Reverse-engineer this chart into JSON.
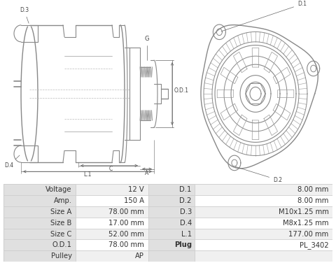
{
  "background_color": "#ffffff",
  "table_left_headers": [
    "Voltage",
    "Amp.",
    "Size A",
    "Size B",
    "Size C",
    "O.D.1",
    "Pulley"
  ],
  "table_left_values": [
    "12 V",
    "150 A",
    "78.00 mm",
    "17.00 mm",
    "52.00 mm",
    "78.00 mm",
    "AP"
  ],
  "table_right_headers": [
    "D.1",
    "D.2",
    "D.3",
    "D.4",
    "L.1",
    "Plug",
    ""
  ],
  "table_right_values": [
    "8.00 mm",
    "8.00 mm",
    "M10x1.25 mm",
    "M8x1.25 mm",
    "177.00 mm",
    "PL_3402",
    ""
  ],
  "header_bg": "#e0e0e0",
  "row_bg_odd": "#f0f0f0",
  "row_bg_even": "#ffffff",
  "border_color": "#cccccc",
  "text_color": "#333333",
  "font_size": 7.2,
  "line_color": "#888888",
  "dim_color": "#666666",
  "label_color": "#444444"
}
